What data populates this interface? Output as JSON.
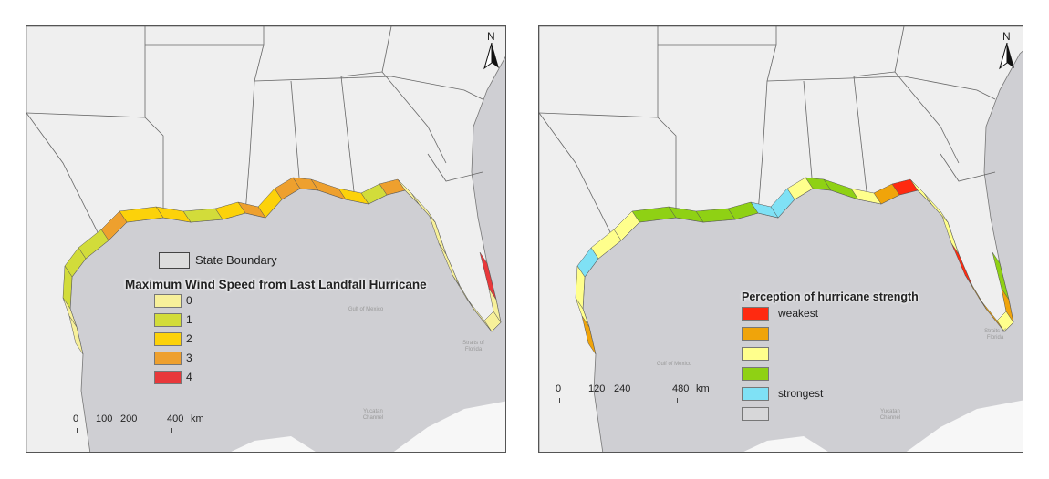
{
  "left_map": {
    "north_label": "N",
    "state_boundary_label": "State Boundary",
    "legend_title": "Maximum Wind Speed from Last Landfall Hurricane",
    "legend": [
      {
        "label": "0",
        "color": "#f7f09a"
      },
      {
        "label": "1",
        "color": "#d2dc3a"
      },
      {
        "label": "2",
        "color": "#fcd20a"
      },
      {
        "label": "3",
        "color": "#eea02e"
      },
      {
        "label": "4",
        "color": "#e8383a"
      }
    ],
    "scale_labels": [
      "0",
      "100",
      "200",
      "400"
    ],
    "scale_unit": "km",
    "place_labels": [
      "Gulf of Mexico",
      "Straits of Florida",
      "Yucatan Channel"
    ]
  },
  "right_map": {
    "north_label": "N",
    "legend_title": "Perception of hurricane strength",
    "legend": [
      {
        "label": "weakest",
        "color": "#ff2a10"
      },
      {
        "label": "",
        "color": "#f0a40a"
      },
      {
        "label": "",
        "color": "#ffff8c"
      },
      {
        "label": "",
        "color": "#8fd114"
      },
      {
        "label": "strongest",
        "color": "#7fe1f5"
      },
      {
        "label": "",
        "color": "#d7d7d9"
      }
    ],
    "scale_labels": [
      "0",
      "120",
      "240",
      "480"
    ],
    "scale_unit": "km",
    "place_labels": [
      "Gulf of Mexico",
      "Straits of Florida",
      "Yucatan Channel"
    ]
  }
}
